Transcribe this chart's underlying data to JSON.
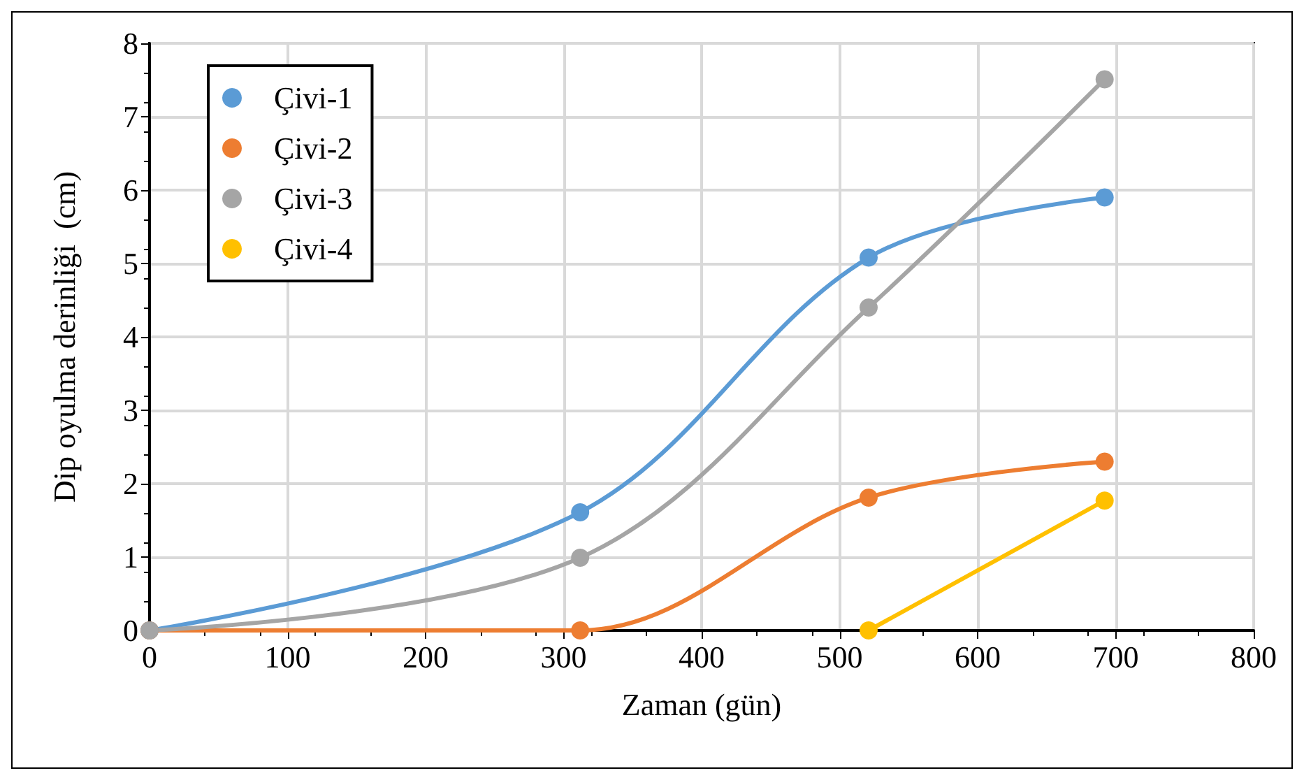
{
  "chart_data": {
    "type": "line",
    "xlabel": "Zaman (gün)",
    "ylabel": "Dip oyulma derinliği  (cm)",
    "series": [
      {
        "name": "Çivi-1",
        "color": "#5b9bd5",
        "x": [
          0,
          312,
          521,
          692
        ],
        "values": [
          0,
          1.61,
          5.08,
          5.9
        ]
      },
      {
        "name": "Çivi-2",
        "color": "#ed7d31",
        "x": [
          0,
          312,
          521,
          692
        ],
        "values": [
          0,
          0,
          1.81,
          2.3
        ]
      },
      {
        "name": "Çivi-3",
        "color": "#a5a5a5",
        "x": [
          0,
          312,
          521,
          692
        ],
        "values": [
          0,
          0.99,
          4.4,
          7.51
        ]
      },
      {
        "name": "Çivi-4",
        "color": "#ffc000",
        "x": [
          521,
          692
        ],
        "values": [
          0,
          1.77
        ]
      }
    ],
    "xlim": [
      0,
      800
    ],
    "xticks": [
      0,
      100,
      200,
      300,
      400,
      500,
      600,
      700,
      800
    ],
    "ylim": [
      0,
      8
    ],
    "yticks": [
      0,
      1,
      2,
      3,
      4,
      5,
      6,
      7,
      8
    ],
    "grid": true,
    "legend": "top left",
    "marker": "circle",
    "line_style": "solid"
  }
}
